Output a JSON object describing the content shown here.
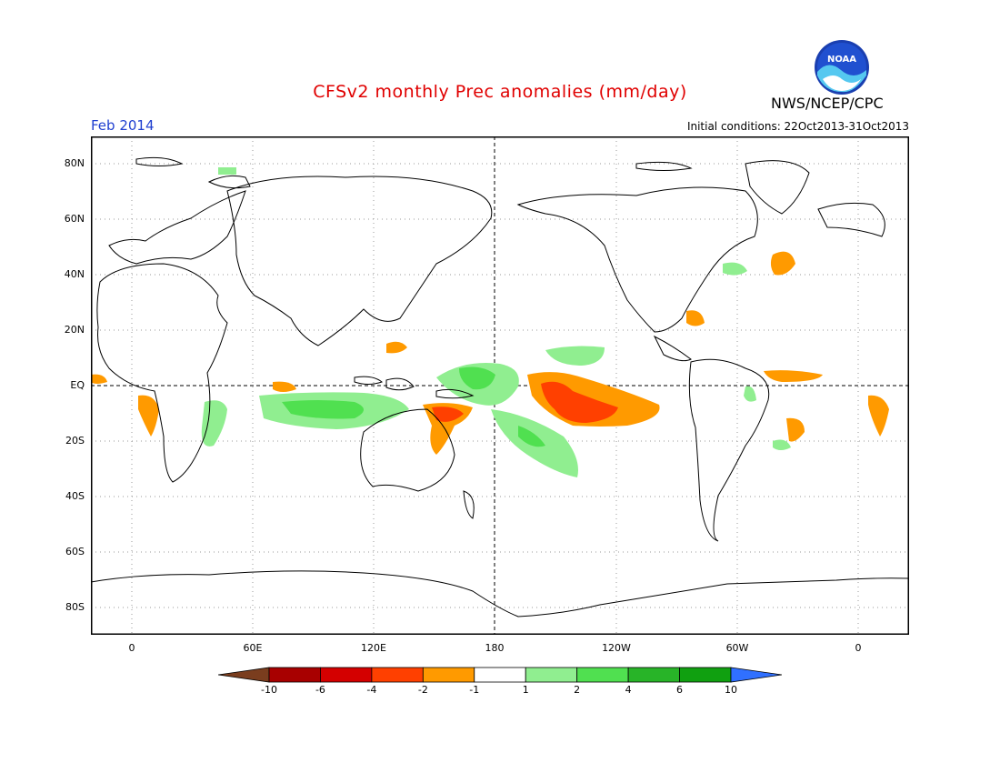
{
  "header": {
    "title": "CFSv2 monthly Prec anomalies (mm/day)",
    "agency": "NWS/NCEP/CPC",
    "month": "Feb 2014",
    "initial_conditions": "Initial conditions: 22Oct2013-31Oct2013"
  },
  "logo": {
    "text": "NOAA",
    "icon": "noaa-logo"
  },
  "axes": {
    "lat_labels": [
      "80N",
      "60N",
      "40N",
      "20N",
      "EQ",
      "20S",
      "40S",
      "60S",
      "80S"
    ],
    "lon_labels": [
      "0",
      "60E",
      "120E",
      "180",
      "120W",
      "60W",
      "0"
    ]
  },
  "colorbar": {
    "labels": [
      "-10",
      "-6",
      "-4",
      "-2",
      "-1",
      "1",
      "2",
      "4",
      "6",
      "10"
    ],
    "colors": [
      "#7a3d1e",
      "#a80000",
      "#d40000",
      "#ff4000",
      "#ff9a00",
      "#ffffff",
      "#90ee90",
      "#50e050",
      "#28b428",
      "#10a010",
      "#3070ff"
    ]
  }
}
